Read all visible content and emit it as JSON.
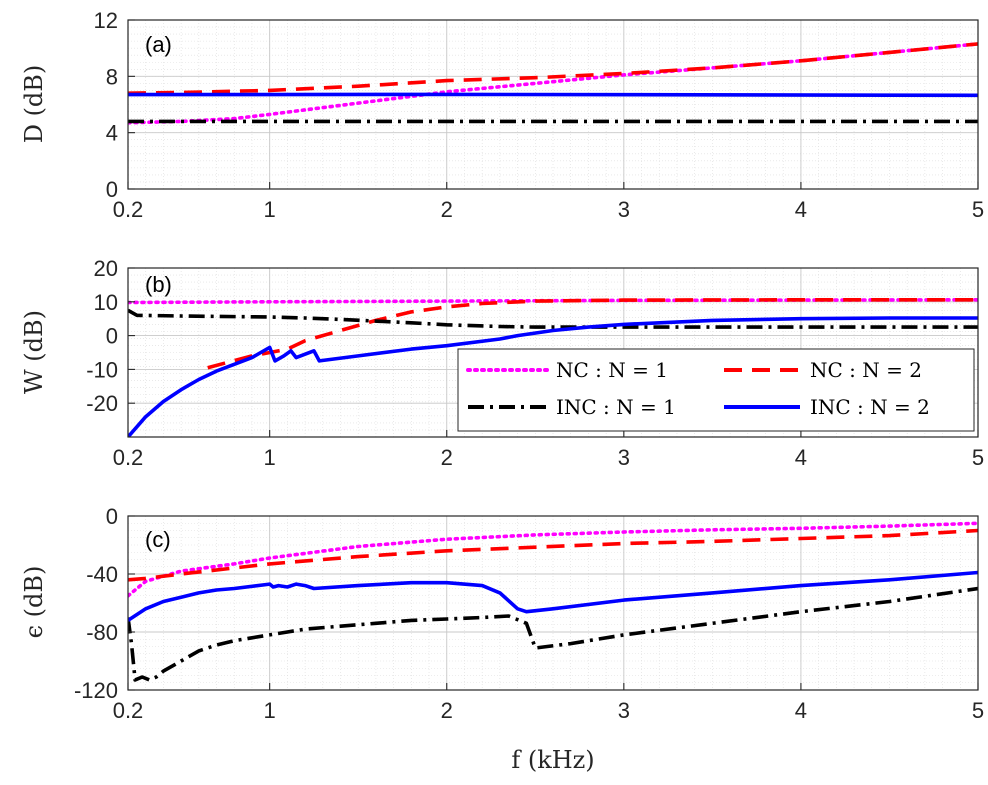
{
  "chart_data": {
    "type": "line",
    "xlabel": "f (kHz)",
    "x_ticks": [
      "0.2",
      "1",
      "2",
      "3",
      "4",
      "5"
    ],
    "x_tick_values": [
      0.2,
      1,
      2,
      3,
      4,
      5
    ],
    "xlim": [
      0.2,
      5
    ],
    "legend": {
      "placement": "inside-bottom-right of panel (b)",
      "entries": [
        "NC : N = 1",
        "NC : N = 2",
        "INC : N = 1",
        "INC : N = 2"
      ]
    },
    "series_styles": [
      {
        "name": "NC : N = 1",
        "color": "#ff00ff",
        "dash": "dotted"
      },
      {
        "name": "NC : N = 2",
        "color": "#ff0000",
        "dash": "dashed"
      },
      {
        "name": "INC : N = 1",
        "color": "#000000",
        "dash": "dashdot"
      },
      {
        "name": "INC : N = 2",
        "color": "#0000ff",
        "dash": "solid"
      }
    ],
    "panels": [
      {
        "label": "(a)",
        "ylabel": "D (dB)",
        "ylim": [
          0,
          12
        ],
        "y_ticks": [
          "0",
          "4",
          "8",
          "12"
        ],
        "y_tick_values": [
          0,
          4,
          8,
          12
        ],
        "series": [
          {
            "name": "NC : N = 1",
            "points": [
              [
                0.2,
                4.7
              ],
              [
                0.5,
                4.8
              ],
              [
                0.8,
                5.0
              ],
              [
                1.0,
                5.3
              ],
              [
                1.5,
                6.1
              ],
              [
                2.0,
                6.9
              ],
              [
                2.5,
                7.5
              ],
              [
                3.0,
                8.1
              ],
              [
                3.5,
                8.6
              ],
              [
                4.0,
                9.1
              ],
              [
                4.5,
                9.7
              ],
              [
                5.0,
                10.3
              ]
            ]
          },
          {
            "name": "NC : N = 2",
            "points": [
              [
                0.2,
                6.8
              ],
              [
                0.5,
                6.85
              ],
              [
                1.0,
                7.0
              ],
              [
                1.5,
                7.3
              ],
              [
                2.0,
                7.7
              ],
              [
                2.5,
                7.9
              ],
              [
                3.0,
                8.2
              ],
              [
                3.5,
                8.6
              ],
              [
                4.0,
                9.1
              ],
              [
                4.5,
                9.7
              ],
              [
                5.0,
                10.3
              ]
            ]
          },
          {
            "name": "INC : N = 1",
            "points": [
              [
                0.2,
                4.8
              ],
              [
                5.0,
                4.8
              ]
            ]
          },
          {
            "name": "INC : N = 2",
            "points": [
              [
                0.2,
                6.7
              ],
              [
                2.0,
                6.72
              ],
              [
                5.0,
                6.65
              ]
            ]
          }
        ]
      },
      {
        "label": "(b)",
        "ylabel": "W (dB)",
        "ylim": [
          -30,
          20
        ],
        "y_ticks": [
          "-20",
          "-10",
          "0",
          "10",
          "20"
        ],
        "y_tick_values": [
          -20,
          -10,
          0,
          10,
          20
        ],
        "series": [
          {
            "name": "NC : N = 1",
            "points": [
              [
                0.2,
                9.8
              ],
              [
                1.0,
                10.0
              ],
              [
                2.0,
                10.2
              ],
              [
                3.0,
                10.4
              ],
              [
                4.0,
                10.5
              ],
              [
                5.0,
                10.6
              ]
            ]
          },
          {
            "name": "NC : N = 2",
            "points": [
              [
                0.65,
                -9.5
              ],
              [
                0.9,
                -6.0
              ],
              [
                1.1,
                -4.0
              ],
              [
                1.2,
                -1.5
              ],
              [
                1.4,
                1.5
              ],
              [
                1.6,
                4.5
              ],
              [
                1.8,
                7.0
              ],
              [
                2.0,
                8.5
              ],
              [
                2.2,
                9.5
              ],
              [
                2.5,
                10.2
              ],
              [
                3.0,
                10.5
              ],
              [
                4.0,
                10.6
              ],
              [
                5.0,
                10.6
              ]
            ]
          },
          {
            "name": "INC : N = 1",
            "points": [
              [
                0.2,
                7.5
              ],
              [
                0.25,
                6.0
              ],
              [
                0.5,
                5.8
              ],
              [
                1.0,
                5.5
              ],
              [
                1.2,
                5.2
              ],
              [
                1.4,
                4.8
              ],
              [
                1.8,
                3.8
              ],
              [
                2.0,
                3.2
              ],
              [
                2.3,
                2.7
              ],
              [
                2.5,
                2.5
              ],
              [
                3.0,
                2.5
              ],
              [
                4.0,
                2.5
              ],
              [
                5.0,
                2.5
              ]
            ]
          },
          {
            "name": "INC : N = 2",
            "points": [
              [
                0.2,
                -30.0
              ],
              [
                0.3,
                -24.0
              ],
              [
                0.4,
                -19.5
              ],
              [
                0.5,
                -16.0
              ],
              [
                0.6,
                -13.0
              ],
              [
                0.7,
                -10.5
              ],
              [
                0.8,
                -8.5
              ],
              [
                0.9,
                -6.5
              ],
              [
                0.95,
                -5.0
              ],
              [
                1.0,
                -3.5
              ],
              [
                1.03,
                -7.5
              ],
              [
                1.08,
                -6.0
              ],
              [
                1.12,
                -4.5
              ],
              [
                1.15,
                -6.5
              ],
              [
                1.2,
                -5.5
              ],
              [
                1.25,
                -4.5
              ],
              [
                1.28,
                -7.5
              ],
              [
                1.5,
                -6.0
              ],
              [
                1.8,
                -4.0
              ],
              [
                2.0,
                -3.0
              ],
              [
                2.3,
                -1.0
              ],
              [
                2.4,
                0.0
              ],
              [
                2.6,
                1.5
              ],
              [
                2.8,
                2.5
              ],
              [
                3.0,
                3.3
              ],
              [
                3.5,
                4.5
              ],
              [
                4.0,
                5.0
              ],
              [
                4.5,
                5.2
              ],
              [
                5.0,
                5.2
              ]
            ]
          }
        ]
      },
      {
        "label": "(c)",
        "ylabel": "ϵ (dB)",
        "ylim": [
          -120,
          0
        ],
        "y_ticks": [
          "-120",
          "-80",
          "-40",
          "0"
        ],
        "y_tick_values": [
          -120,
          -80,
          -40,
          0
        ],
        "series": [
          {
            "name": "NC : N = 1",
            "points": [
              [
                0.2,
                -55.0
              ],
              [
                0.3,
                -45.0
              ],
              [
                0.5,
                -38.0
              ],
              [
                0.8,
                -33.0
              ],
              [
                1.0,
                -29.0
              ],
              [
                1.5,
                -21.0
              ],
              [
                2.0,
                -16.0
              ],
              [
                2.5,
                -13.0
              ],
              [
                3.0,
                -11.0
              ],
              [
                3.5,
                -9.5
              ],
              [
                4.0,
                -8.5
              ],
              [
                4.5,
                -7.0
              ],
              [
                5.0,
                -5.0
              ]
            ]
          },
          {
            "name": "NC : N = 2",
            "points": [
              [
                0.2,
                -44.0
              ],
              [
                0.3,
                -43.0
              ],
              [
                0.5,
                -40.0
              ],
              [
                1.0,
                -33.0
              ],
              [
                1.5,
                -28.0
              ],
              [
                2.0,
                -24.0
              ],
              [
                2.5,
                -21.5
              ],
              [
                3.0,
                -19.0
              ],
              [
                3.5,
                -17.5
              ],
              [
                4.0,
                -15.5
              ],
              [
                4.5,
                -13.5
              ],
              [
                5.0,
                -10.0
              ]
            ]
          },
          {
            "name": "INC : N = 1",
            "points": [
              [
                0.2,
                -70.0
              ],
              [
                0.22,
                -88.0
              ],
              [
                0.24,
                -113.0
              ],
              [
                0.28,
                -111.0
              ],
              [
                0.32,
                -113.0
              ],
              [
                0.36,
                -111.0
              ],
              [
                0.4,
                -107.0
              ],
              [
                0.5,
                -100.0
              ],
              [
                0.6,
                -93.0
              ],
              [
                0.7,
                -89.0
              ],
              [
                0.8,
                -86.0
              ],
              [
                0.9,
                -84.0
              ],
              [
                1.0,
                -82.0
              ],
              [
                1.1,
                -80.0
              ],
              [
                1.2,
                -78.0
              ],
              [
                1.4,
                -76.0
              ],
              [
                1.6,
                -74.0
              ],
              [
                1.8,
                -72.0
              ],
              [
                2.0,
                -71.0
              ],
              [
                2.2,
                -70.0
              ],
              [
                2.35,
                -69.0
              ],
              [
                2.45,
                -74.0
              ],
              [
                2.5,
                -91.0
              ],
              [
                2.7,
                -88.0
              ],
              [
                3.0,
                -82.0
              ],
              [
                3.5,
                -74.0
              ],
              [
                4.0,
                -66.0
              ],
              [
                4.5,
                -59.0
              ],
              [
                5.0,
                -50.0
              ]
            ]
          },
          {
            "name": "INC : N = 2",
            "points": [
              [
                0.2,
                -72.0
              ],
              [
                0.3,
                -64.0
              ],
              [
                0.4,
                -59.0
              ],
              [
                0.5,
                -56.0
              ],
              [
                0.6,
                -53.0
              ],
              [
                0.7,
                -51.0
              ],
              [
                0.8,
                -50.0
              ],
              [
                1.0,
                -47.0
              ],
              [
                1.02,
                -49.0
              ],
              [
                1.05,
                -48.0
              ],
              [
                1.1,
                -49.0
              ],
              [
                1.15,
                -47.0
              ],
              [
                1.2,
                -48.0
              ],
              [
                1.25,
                -50.0
              ],
              [
                1.5,
                -48.0
              ],
              [
                1.8,
                -46.0
              ],
              [
                2.0,
                -46.0
              ],
              [
                2.2,
                -48.0
              ],
              [
                2.3,
                -53.0
              ],
              [
                2.4,
                -64.0
              ],
              [
                2.45,
                -66.0
              ],
              [
                2.6,
                -64.0
              ],
              [
                3.0,
                -58.0
              ],
              [
                3.5,
                -53.0
              ],
              [
                4.0,
                -48.0
              ],
              [
                4.5,
                -44.0
              ],
              [
                5.0,
                -39.0
              ]
            ]
          }
        ]
      }
    ]
  }
}
